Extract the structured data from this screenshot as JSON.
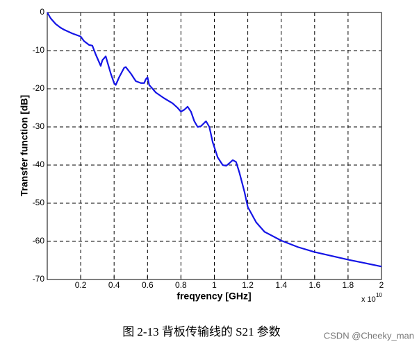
{
  "chart_data": {
    "type": "line",
    "x_label": "freqyency [GHz]",
    "y_label": "Transfer function [dB]",
    "x_multiplier": "x 10",
    "x_multiplier_exponent": "10",
    "x": [
      0,
      0.02,
      0.05,
      0.08,
      0.1,
      0.15,
      0.2,
      0.22,
      0.25,
      0.27,
      0.29,
      0.31,
      0.32,
      0.33,
      0.35,
      0.36,
      0.38,
      0.4,
      0.41,
      0.43,
      0.46,
      0.47,
      0.5,
      0.53,
      0.56,
      0.58,
      0.59,
      0.6,
      0.61,
      0.65,
      0.7,
      0.75,
      0.78,
      0.8,
      0.82,
      0.84,
      0.86,
      0.88,
      0.9,
      0.92,
      0.95,
      0.97,
      0.99,
      1.02,
      1.05,
      1.07,
      1.09,
      1.11,
      1.13,
      1.15,
      1.18,
      1.2,
      1.25,
      1.3,
      1.4,
      1.5,
      1.6,
      1.7,
      1.8,
      1.9,
      2
    ],
    "values": [
      0,
      -1.5,
      -3,
      -4,
      -4.5,
      -5.5,
      -6.3,
      -7.5,
      -8.5,
      -8.7,
      -11,
      -13,
      -14,
      -12.5,
      -11.5,
      -13,
      -16,
      -18.5,
      -19,
      -17,
      -14.5,
      -14.3,
      -16,
      -18,
      -18.5,
      -18.5,
      -17.5,
      -17,
      -19,
      -21,
      -22.5,
      -23.8,
      -25,
      -26,
      -25.5,
      -24.7,
      -26,
      -28.5,
      -30,
      -29.8,
      -28.5,
      -30,
      -34,
      -38,
      -40,
      -40.2,
      -39.5,
      -38.7,
      -39.2,
      -42,
      -47,
      -51,
      -55,
      -57.5,
      -59.8,
      -61.5,
      -62.8,
      -63.8,
      -64.8,
      -65.7,
      -66.6
    ],
    "color": "#1414e6",
    "xlim": [
      0,
      2
    ],
    "xticks": [
      0.2,
      0.4,
      0.6,
      0.8,
      1,
      1.2,
      1.4,
      1.6,
      1.8,
      2
    ],
    "ylim": [
      -70,
      0
    ],
    "yticks": [
      0,
      -10,
      -20,
      -30,
      -40,
      -50,
      -60,
      -70
    ],
    "grid": true
  },
  "caption": "图 2-13 背板传输线的 S21 参数",
  "watermark": "CSDN @Cheeky_man"
}
